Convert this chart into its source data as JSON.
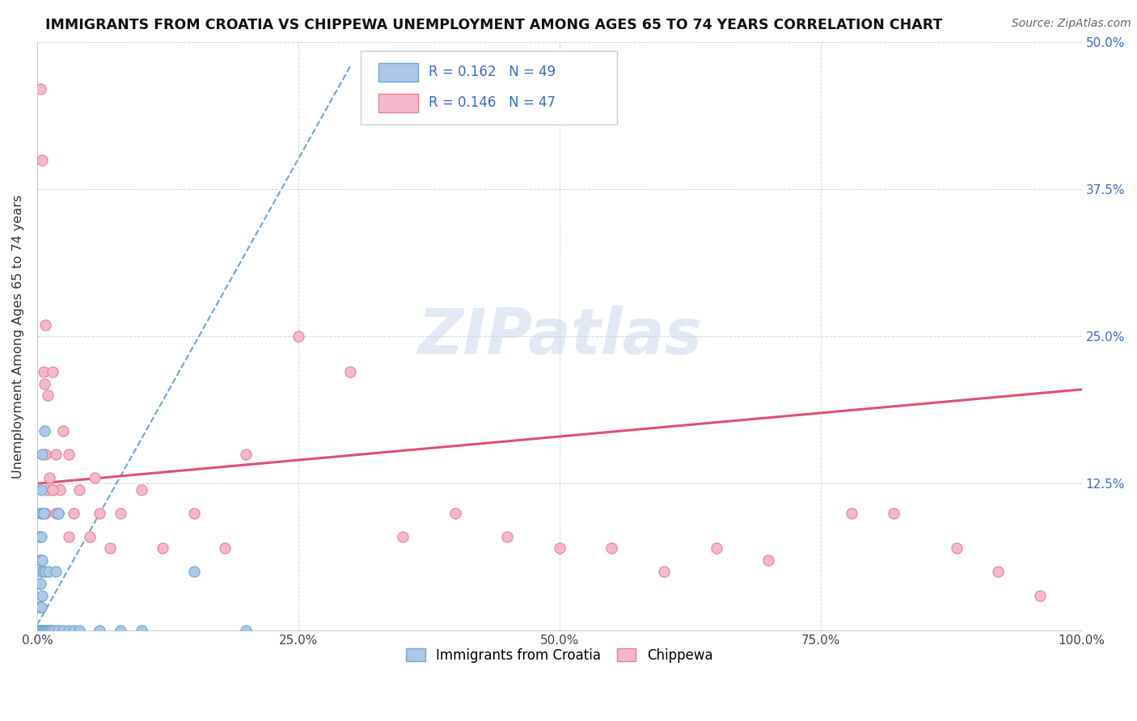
{
  "title": "IMMIGRANTS FROM CROATIA VS CHIPPEWA UNEMPLOYMENT AMONG AGES 65 TO 74 YEARS CORRELATION CHART",
  "source": "Source: ZipAtlas.com",
  "ylabel": "Unemployment Among Ages 65 to 74 years",
  "xlim": [
    0,
    1.0
  ],
  "ylim": [
    0,
    0.5
  ],
  "xticks": [
    0.0,
    0.25,
    0.5,
    0.75,
    1.0
  ],
  "xticklabels": [
    "0.0%",
    "25.0%",
    "50.0%",
    "75.0%",
    "100.0%"
  ],
  "yticks": [
    0.0,
    0.125,
    0.25,
    0.375,
    0.5
  ],
  "yticklabels_right": [
    "",
    "12.5%",
    "25.0%",
    "37.5%",
    "50.0%"
  ],
  "legend_labels": [
    "Immigrants from Croatia",
    "Chippewa"
  ],
  "R_croatia": 0.162,
  "N_croatia": 49,
  "R_chippewa": 0.146,
  "N_chippewa": 47,
  "color_croatia": "#aec6e8",
  "color_chippewa": "#f5b8ca",
  "edge_croatia": "#6aaad4",
  "edge_chippewa": "#e87fa0",
  "line_color_croatia": "#5b9bd5",
  "line_color_chippewa": "#e05070",
  "watermark_color": "#c8d8ec",
  "background_color": "#ffffff",
  "cr_x": [
    0.001,
    0.001,
    0.002,
    0.002,
    0.002,
    0.002,
    0.002,
    0.003,
    0.003,
    0.003,
    0.003,
    0.003,
    0.003,
    0.004,
    0.004,
    0.004,
    0.004,
    0.004,
    0.005,
    0.005,
    0.005,
    0.005,
    0.005,
    0.006,
    0.006,
    0.006,
    0.007,
    0.007,
    0.008,
    0.008,
    0.009,
    0.01,
    0.011,
    0.012,
    0.013,
    0.014,
    0.016,
    0.018,
    0.02,
    0.025,
    0.03,
    0.035,
    0.04,
    0.06,
    0.08,
    0.1,
    0.15,
    0.2,
    0.02
  ],
  "cr_y": [
    0.0,
    0.02,
    0.0,
    0.02,
    0.04,
    0.06,
    0.08,
    0.0,
    0.02,
    0.04,
    0.06,
    0.08,
    0.1,
    0.0,
    0.02,
    0.05,
    0.08,
    0.12,
    0.0,
    0.03,
    0.06,
    0.1,
    0.15,
    0.0,
    0.05,
    0.1,
    0.0,
    0.17,
    0.0,
    0.05,
    0.0,
    0.0,
    0.05,
    0.0,
    0.0,
    0.0,
    0.0,
    0.05,
    0.0,
    0.0,
    0.0,
    0.0,
    0.0,
    0.0,
    0.0,
    0.0,
    0.05,
    0.0,
    0.1
  ],
  "ch_x": [
    0.003,
    0.005,
    0.006,
    0.007,
    0.008,
    0.008,
    0.01,
    0.01,
    0.012,
    0.015,
    0.015,
    0.018,
    0.018,
    0.02,
    0.022,
    0.025,
    0.03,
    0.035,
    0.04,
    0.05,
    0.055,
    0.06,
    0.07,
    0.08,
    0.1,
    0.12,
    0.15,
    0.18,
    0.2,
    0.25,
    0.3,
    0.35,
    0.4,
    0.45,
    0.5,
    0.55,
    0.6,
    0.65,
    0.7,
    0.78,
    0.82,
    0.88,
    0.92,
    0.96,
    0.008,
    0.015,
    0.03
  ],
  "ch_y": [
    0.46,
    0.4,
    0.22,
    0.21,
    0.15,
    0.1,
    0.2,
    0.12,
    0.13,
    0.22,
    0.12,
    0.15,
    0.1,
    0.1,
    0.12,
    0.17,
    0.15,
    0.1,
    0.12,
    0.08,
    0.13,
    0.1,
    0.07,
    0.1,
    0.12,
    0.07,
    0.1,
    0.07,
    0.15,
    0.25,
    0.22,
    0.08,
    0.1,
    0.08,
    0.07,
    0.07,
    0.05,
    0.07,
    0.06,
    0.1,
    0.1,
    0.07,
    0.05,
    0.03,
    0.26,
    0.12,
    0.08
  ],
  "cr_trend_x": [
    0.0,
    0.3
  ],
  "cr_trend_y": [
    0.005,
    0.48
  ],
  "ch_trend_x": [
    0.0,
    1.0
  ],
  "ch_trend_y": [
    0.125,
    0.205
  ]
}
